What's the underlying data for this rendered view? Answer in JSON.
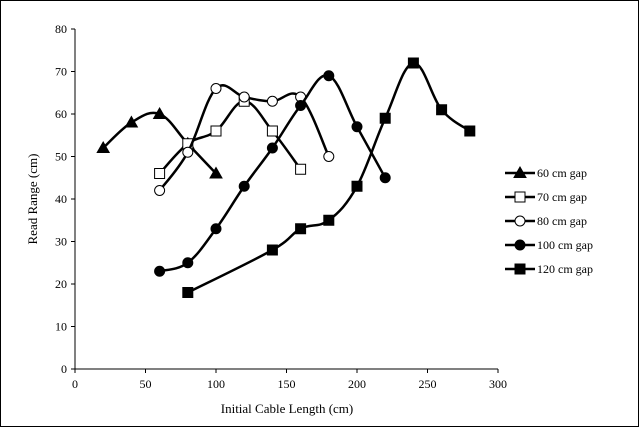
{
  "chart_data": {
    "type": "line",
    "xlabel": "Initial Cable Length (cm)",
    "ylabel": "Read Range (cm)",
    "xlim": [
      0,
      300
    ],
    "ylim": [
      0,
      80
    ],
    "xticks": [
      0,
      50,
      100,
      150,
      200,
      250,
      300
    ],
    "yticks": [
      0,
      10,
      20,
      30,
      40,
      50,
      60,
      70,
      80
    ],
    "grid": false,
    "legend_position": "right",
    "series": [
      {
        "name": "60 cm gap",
        "marker": "triangle",
        "fill": "filled",
        "x": [
          20,
          40,
          60,
          80,
          100
        ],
        "y": [
          52,
          58,
          60,
          53,
          46
        ]
      },
      {
        "name": "70 cm gap",
        "marker": "square",
        "fill": "open",
        "x": [
          60,
          80,
          100,
          120,
          140,
          160
        ],
        "y": [
          46,
          53,
          56,
          63,
          56,
          47
        ]
      },
      {
        "name": "80 cm gap",
        "marker": "circle",
        "fill": "open",
        "x": [
          60,
          80,
          100,
          120,
          140,
          160,
          180
        ],
        "y": [
          42,
          51,
          66,
          64,
          63,
          64,
          50
        ]
      },
      {
        "name": "100 cm gap",
        "marker": "circle",
        "fill": "filled",
        "x": [
          60,
          80,
          100,
          120,
          140,
          160,
          180,
          200,
          220
        ],
        "y": [
          23,
          25,
          33,
          43,
          52,
          62,
          69,
          57,
          45
        ]
      },
      {
        "name": "120 cm gap",
        "marker": "square",
        "fill": "filled",
        "x": [
          80,
          140,
          160,
          180,
          200,
          220,
          240,
          260,
          280
        ],
        "y": [
          18,
          28,
          33,
          35,
          43,
          59,
          72,
          61,
          56
        ]
      }
    ],
    "colors": {
      "line": "#000000",
      "background": "#ffffff"
    }
  }
}
